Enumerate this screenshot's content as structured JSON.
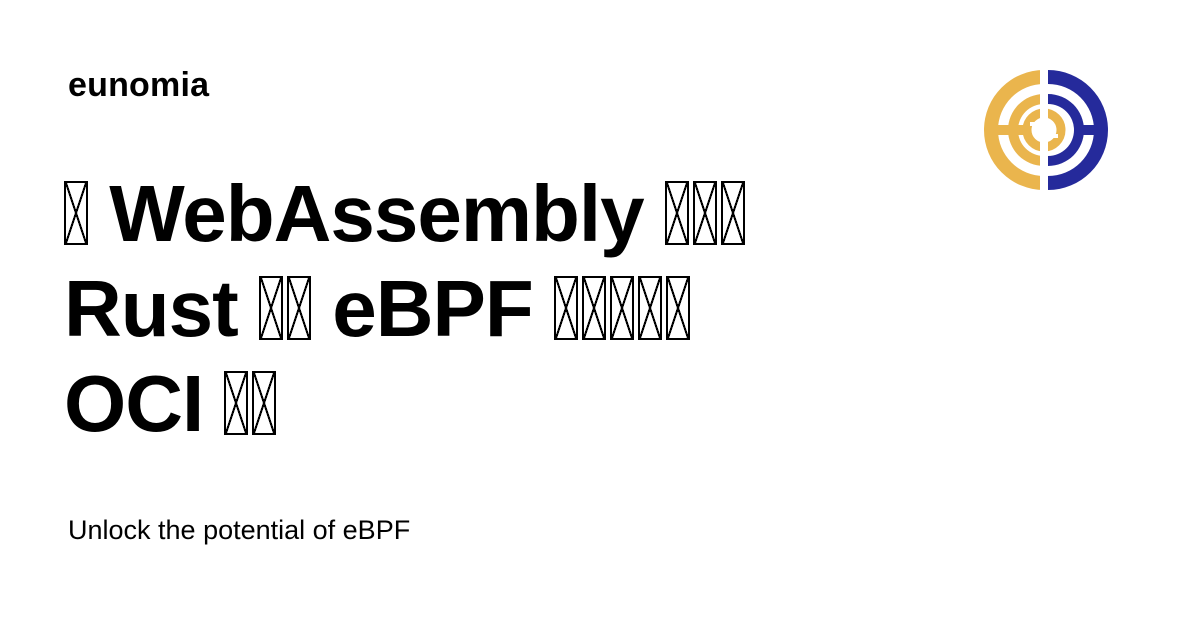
{
  "brand": {
    "name": "eunomia",
    "logo_icon": "eunomia-logo-icon",
    "logo_colors": {
      "gold": "#EAB54D",
      "navy": "#252A9B"
    }
  },
  "title": {
    "line1_word": "WebAssembly",
    "line2_word1": "Rust",
    "line2_word2": "eBPF",
    "line3_word": "OCI"
  },
  "subtitle": "Unlock the potential of eBPF"
}
